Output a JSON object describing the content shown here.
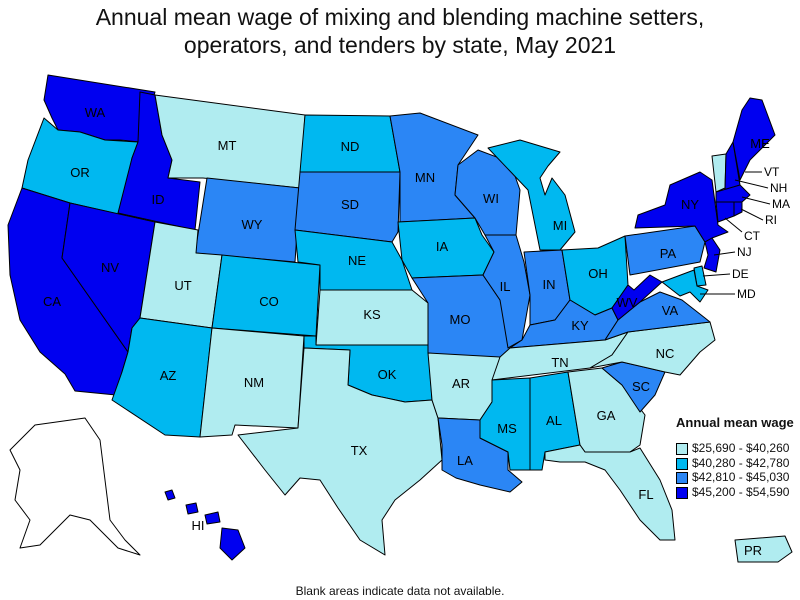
{
  "title_line1": "Annual mean wage of mixing and blending machine setters,",
  "title_line2": "operators, and tenders by state, May 2021",
  "footnote": "Blank areas indicate data not available.",
  "legend": {
    "title": "Annual mean wage",
    "bins": [
      {
        "range": "$25,690 - $40,260",
        "color": "#b0ecf0"
      },
      {
        "range": "$40,280 - $42,780",
        "color": "#00b8f0"
      },
      {
        "range": "$42,810 - $45,030",
        "color": "#2b86f5"
      },
      {
        "range": "$45,200 - $54,590",
        "color": "#0000f0"
      }
    ]
  },
  "states": {
    "WA": 0,
    "OR": 1,
    "CA": 0,
    "NV": 0,
    "ID": 0,
    "MT": 3,
    "WY": 2,
    "UT": 3,
    "AZ": 1,
    "CO": 1,
    "NM": 3,
    "ND": 1,
    "SD": 2,
    "NE": 1,
    "KS": 3,
    "OK": 1,
    "TX": 3,
    "MN": 2,
    "IA": 1,
    "MO": 2,
    "AR": 3,
    "LA": 2,
    "WI": 2,
    "IL": 2,
    "MI": 1,
    "IN": 2,
    "OH": 1,
    "KY": 2,
    "TN": 3,
    "MS": 1,
    "AL": 1,
    "GA": 3,
    "FL": 3,
    "SC": 2,
    "NC": 3,
    "VA": 2,
    "WV": 0,
    "PA": 2,
    "NY": 0,
    "ME": 0,
    "VT": 3,
    "NH": 0,
    "MA": 0,
    "CT": 0,
    "RI": 0,
    "NJ": 0,
    "DE": 1,
    "MD": 1,
    "HI": 0,
    "AK": null,
    "PR": 3
  },
  "bin_colors": [
    "#0000f0",
    "#00b8f0",
    "#2b86f5",
    "#b0ecf0"
  ],
  "labels": {
    "WA": "WA",
    "OR": "OR",
    "CA": "CA",
    "NV": "NV",
    "ID": "ID",
    "MT": "MT",
    "WY": "WY",
    "UT": "UT",
    "AZ": "AZ",
    "CO": "CO",
    "NM": "NM",
    "ND": "ND",
    "SD": "SD",
    "NE": "NE",
    "KS": "KS",
    "OK": "OK",
    "TX": "TX",
    "MN": "MN",
    "IA": "IA",
    "MO": "MO",
    "AR": "AR",
    "LA": "LA",
    "WI": "WI",
    "IL": "IL",
    "MI": "MI",
    "IN": "IN",
    "OH": "OH",
    "KY": "KY",
    "TN": "TN",
    "MS": "MS",
    "AL": "AL",
    "GA": "GA",
    "FL": "FL",
    "SC": "SC",
    "NC": "NC",
    "VA": "VA",
    "WV": "WV",
    "PA": "PA",
    "NY": "NY",
    "ME": "ME",
    "VT": "VT",
    "NH": "NH",
    "MA": "MA",
    "CT": "CT",
    "RI": "RI",
    "NJ": "NJ",
    "DE": "DE",
    "MD": "MD",
    "HI": "HI",
    "PR": "PR"
  }
}
